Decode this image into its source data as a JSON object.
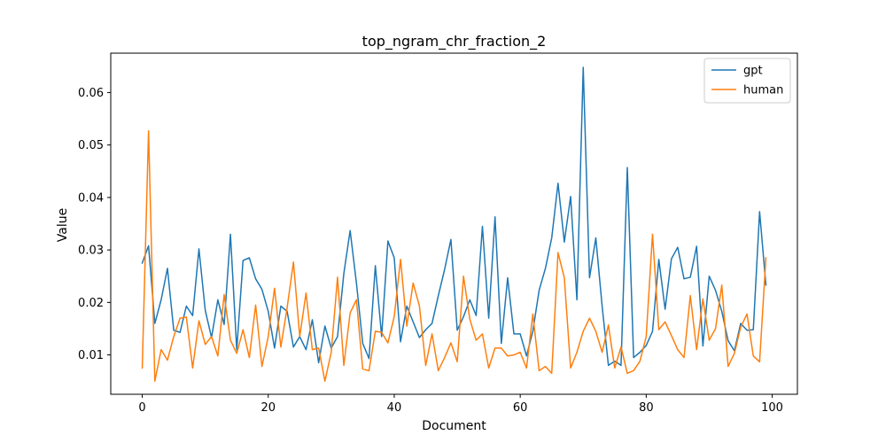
{
  "chart_data": {
    "type": "line",
    "title": "top_ngram_chr_fraction_2",
    "xlabel": "Document",
    "ylabel": "Value",
    "xlim": [
      -5,
      104
    ],
    "ylim": [
      0.0025,
      0.0675
    ],
    "xticks": [
      0,
      20,
      40,
      60,
      80,
      100
    ],
    "yticks": [
      0.01,
      0.02,
      0.03,
      0.04,
      0.05,
      0.06
    ],
    "ytick_labels": [
      "0.01",
      "0.02",
      "0.03",
      "0.04",
      "0.05",
      "0.06"
    ],
    "legend_position": "top-right",
    "grid": false,
    "series": [
      {
        "name": "gpt",
        "color": "#1f77b4",
        "x": [
          0,
          1,
          2,
          3,
          4,
          5,
          6,
          7,
          8,
          9,
          10,
          11,
          12,
          13,
          14,
          15,
          16,
          17,
          18,
          19,
          20,
          21,
          22,
          23,
          24,
          25,
          26,
          27,
          28,
          29,
          30,
          31,
          32,
          33,
          34,
          35,
          36,
          37,
          38,
          39,
          40,
          41,
          42,
          43,
          44,
          45,
          46,
          47,
          48,
          49,
          50,
          51,
          52,
          53,
          54,
          55,
          56,
          57,
          58,
          59,
          60,
          61,
          62,
          63,
          64,
          65,
          66,
          67,
          68,
          69,
          70,
          71,
          72,
          73,
          74,
          75,
          76,
          77,
          78,
          79,
          80,
          81,
          82,
          83,
          84,
          85,
          86,
          87,
          88,
          89,
          90,
          91,
          92,
          93,
          94,
          95,
          96,
          97,
          98,
          99
        ],
        "values": [
          0.0275,
          0.0308,
          0.016,
          0.0205,
          0.0265,
          0.0147,
          0.0143,
          0.0193,
          0.0175,
          0.0302,
          0.0185,
          0.0133,
          0.0205,
          0.0158,
          0.033,
          0.011,
          0.028,
          0.0285,
          0.0245,
          0.0225,
          0.0183,
          0.0113,
          0.0193,
          0.0183,
          0.0115,
          0.0135,
          0.011,
          0.0167,
          0.0085,
          0.0155,
          0.0113,
          0.0135,
          0.0255,
          0.0337,
          0.0237,
          0.0122,
          0.0093,
          0.027,
          0.0135,
          0.0317,
          0.0285,
          0.0125,
          0.0193,
          0.0163,
          0.0133,
          0.0148,
          0.016,
          0.0213,
          0.0263,
          0.032,
          0.0147,
          0.0173,
          0.0205,
          0.0175,
          0.0345,
          0.017,
          0.0363,
          0.0122,
          0.0247,
          0.014,
          0.014,
          0.0098,
          0.0145,
          0.0223,
          0.0265,
          0.0323,
          0.0427,
          0.0315,
          0.0402,
          0.0205,
          0.0648,
          0.0247,
          0.0323,
          0.0193,
          0.008,
          0.0088,
          0.008,
          0.0457,
          0.0095,
          0.0105,
          0.0118,
          0.0145,
          0.0282,
          0.0187,
          0.0283,
          0.0305,
          0.0245,
          0.0248,
          0.0307,
          0.0117,
          0.025,
          0.0223,
          0.0183,
          0.0127,
          0.0108,
          0.016,
          0.0147,
          0.0148,
          0.0373,
          0.0233
        ]
      },
      {
        "name": "human",
        "color": "#ff7f0e",
        "x": [
          0,
          1,
          2,
          3,
          4,
          5,
          6,
          7,
          8,
          9,
          10,
          11,
          12,
          13,
          14,
          15,
          16,
          17,
          18,
          19,
          20,
          21,
          22,
          23,
          24,
          25,
          26,
          27,
          28,
          29,
          30,
          31,
          32,
          33,
          34,
          35,
          36,
          37,
          38,
          39,
          40,
          41,
          42,
          43,
          44,
          45,
          46,
          47,
          48,
          49,
          50,
          51,
          52,
          53,
          54,
          55,
          56,
          57,
          58,
          59,
          60,
          61,
          62,
          63,
          64,
          65,
          66,
          67,
          68,
          69,
          70,
          71,
          72,
          73,
          74,
          75,
          76,
          77,
          78,
          79,
          80,
          81,
          82,
          83,
          84,
          85,
          86,
          87,
          88,
          89,
          90,
          91,
          92,
          93,
          94,
          95,
          96,
          97,
          98,
          99
        ],
        "values": [
          0.0075,
          0.0527,
          0.005,
          0.011,
          0.009,
          0.0135,
          0.017,
          0.0172,
          0.0075,
          0.0165,
          0.012,
          0.0135,
          0.0098,
          0.0215,
          0.0128,
          0.0103,
          0.0148,
          0.0095,
          0.0195,
          0.0078,
          0.0135,
          0.0227,
          0.0115,
          0.019,
          0.0277,
          0.0135,
          0.0218,
          0.011,
          0.0113,
          0.005,
          0.0105,
          0.0248,
          0.008,
          0.018,
          0.0205,
          0.0073,
          0.007,
          0.0145,
          0.0143,
          0.0123,
          0.0173,
          0.0282,
          0.0155,
          0.0237,
          0.0193,
          0.008,
          0.014,
          0.007,
          0.0095,
          0.0123,
          0.0087,
          0.025,
          0.0168,
          0.0128,
          0.014,
          0.0075,
          0.0113,
          0.0113,
          0.0098,
          0.01,
          0.0105,
          0.0075,
          0.0178,
          0.007,
          0.0078,
          0.0065,
          0.0295,
          0.0247,
          0.0075,
          0.0105,
          0.0145,
          0.017,
          0.0145,
          0.0105,
          0.0157,
          0.0075,
          0.0115,
          0.0065,
          0.007,
          0.0088,
          0.0135,
          0.033,
          0.0148,
          0.0163,
          0.0137,
          0.011,
          0.0095,
          0.0213,
          0.011,
          0.0207,
          0.0128,
          0.015,
          0.0233,
          0.0078,
          0.0103,
          0.0153,
          0.0178,
          0.0098,
          0.0087,
          0.0285
        ]
      }
    ]
  }
}
